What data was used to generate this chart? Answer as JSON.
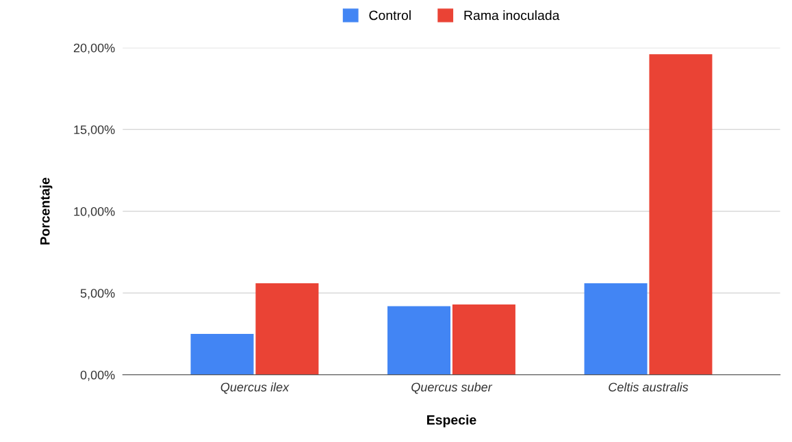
{
  "chart_data": {
    "type": "bar",
    "xlabel": "Especie",
    "ylabel": "Porcentaje",
    "categories": [
      "Quercus ilex",
      "Quercus suber",
      "Celtis australis"
    ],
    "series": [
      {
        "name": "Control",
        "color": "#4285f4",
        "values": [
          2.5,
          4.2,
          5.6
        ]
      },
      {
        "name": "Rama inoculada",
        "color": "#ea4335",
        "values": [
          5.6,
          4.3,
          19.6
        ]
      }
    ],
    "ylim": [
      0,
      20
    ],
    "yticks": [
      {
        "value": 0,
        "label": "0,00%"
      },
      {
        "value": 5,
        "label": "5,00%"
      },
      {
        "value": 10,
        "label": "10,00%"
      },
      {
        "value": 15,
        "label": "15,00%"
      },
      {
        "value": 20,
        "label": "20,00%"
      }
    ],
    "grid": "y",
    "legend": "top"
  }
}
